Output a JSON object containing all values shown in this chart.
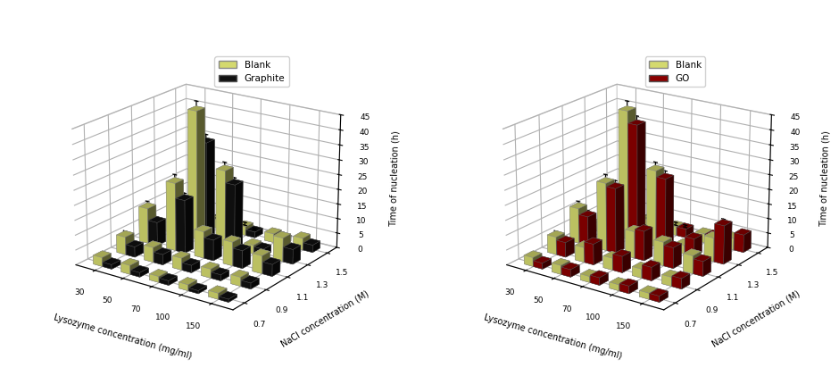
{
  "lysozyme_labels": [
    "30",
    "50",
    "70",
    "100",
    "150"
  ],
  "nacl_labels": [
    "0.7",
    "0.9",
    "1.1",
    "1.3",
    "1.5"
  ],
  "zlim": [
    0,
    45
  ],
  "zticks": [
    0,
    5,
    10,
    15,
    20,
    25,
    30,
    35,
    40,
    45
  ],
  "zlabel": "Time of nucleation (h)",
  "xlabel": "Lysozyme concentration (mg/ml)",
  "ylabel": "NaCl concentration (M)",
  "blank_color": "#d4d96e",
  "graphite_color": "#111111",
  "go_color": "#8b0000",
  "bar_width": 0.32,
  "bar_depth": 0.38,
  "elev": 20,
  "azim1": -55,
  "azim2": -55,
  "chart1_blank": [
    [
      3.0,
      3.0,
      2.0,
      2.0,
      2.0
    ],
    [
      6.0,
      5.0,
      4.0,
      3.0,
      3.0
    ],
    [
      12.0,
      23.0,
      9.0,
      8.0,
      6.0
    ],
    [
      3.0,
      44.0,
      26.0,
      3.0,
      8.0
    ],
    [
      3.0,
      3.0,
      3.0,
      3.0,
      4.0
    ]
  ],
  "chart1_graphite": [
    [
      1.5,
      1.5,
      1.5,
      1.0,
      1.0
    ],
    [
      3.5,
      3.5,
      2.5,
      2.0,
      2.0
    ],
    [
      8.0,
      18.0,
      7.0,
      6.0,
      4.0
    ],
    [
      2.0,
      34.0,
      22.0,
      2.5,
      5.0
    ],
    [
      2.0,
      2.0,
      2.0,
      2.0,
      2.5
    ]
  ],
  "chart1_blank_err": [
    [
      0.5,
      0.5,
      0.3,
      0.3,
      0.3
    ],
    [
      1.0,
      0.8,
      0.6,
      0.5,
      0.5
    ],
    [
      1.5,
      2.0,
      1.0,
      1.0,
      0.8
    ],
    [
      0.5,
      2.5,
      2.0,
      0.5,
      1.0
    ],
    [
      0.5,
      0.5,
      0.5,
      0.5,
      0.5
    ]
  ],
  "chart1_graphite_err": [
    [
      0.4,
      0.4,
      0.3,
      0.2,
      0.2
    ],
    [
      0.7,
      0.6,
      0.5,
      0.4,
      0.4
    ],
    [
      1.0,
      1.5,
      0.8,
      0.8,
      0.6
    ],
    [
      0.4,
      2.0,
      1.5,
      0.4,
      0.7
    ],
    [
      0.3,
      0.3,
      0.3,
      0.3,
      0.4
    ]
  ],
  "chart2_blank": [
    [
      3.0,
      3.0,
      2.0,
      2.0,
      2.0
    ],
    [
      6.0,
      5.0,
      4.0,
      3.0,
      3.0
    ],
    [
      12.0,
      23.0,
      9.0,
      8.0,
      6.0
    ],
    [
      3.0,
      44.0,
      26.0,
      3.0,
      8.0
    ],
    [
      3.0,
      3.0,
      3.0,
      3.0,
      4.0
    ]
  ],
  "chart2_go": [
    [
      2.0,
      2.5,
      2.5,
      2.5,
      2.0
    ],
    [
      5.0,
      7.0,
      5.5,
      4.5,
      3.5
    ],
    [
      10.0,
      22.0,
      10.0,
      7.0,
      5.0
    ],
    [
      3.0,
      40.0,
      24.0,
      6.0,
      13.0
    ],
    [
      3.0,
      3.0,
      3.0,
      3.0,
      6.0
    ]
  ],
  "chart2_blank_err": [
    [
      0.5,
      0.5,
      0.3,
      0.3,
      0.3
    ],
    [
      1.0,
      0.8,
      0.6,
      0.5,
      0.5
    ],
    [
      1.5,
      2.0,
      1.0,
      1.0,
      0.8
    ],
    [
      0.5,
      2.5,
      2.0,
      0.5,
      1.0
    ],
    [
      0.5,
      0.5,
      0.5,
      0.5,
      0.5
    ]
  ],
  "chart2_go_err": [
    [
      0.4,
      0.5,
      0.4,
      0.4,
      0.3
    ],
    [
      0.8,
      1.0,
      0.8,
      0.7,
      0.6
    ],
    [
      1.2,
      1.8,
      1.2,
      1.0,
      0.7
    ],
    [
      0.5,
      2.2,
      1.8,
      0.8,
      1.2
    ],
    [
      0.4,
      0.4,
      0.4,
      0.4,
      0.7
    ]
  ]
}
